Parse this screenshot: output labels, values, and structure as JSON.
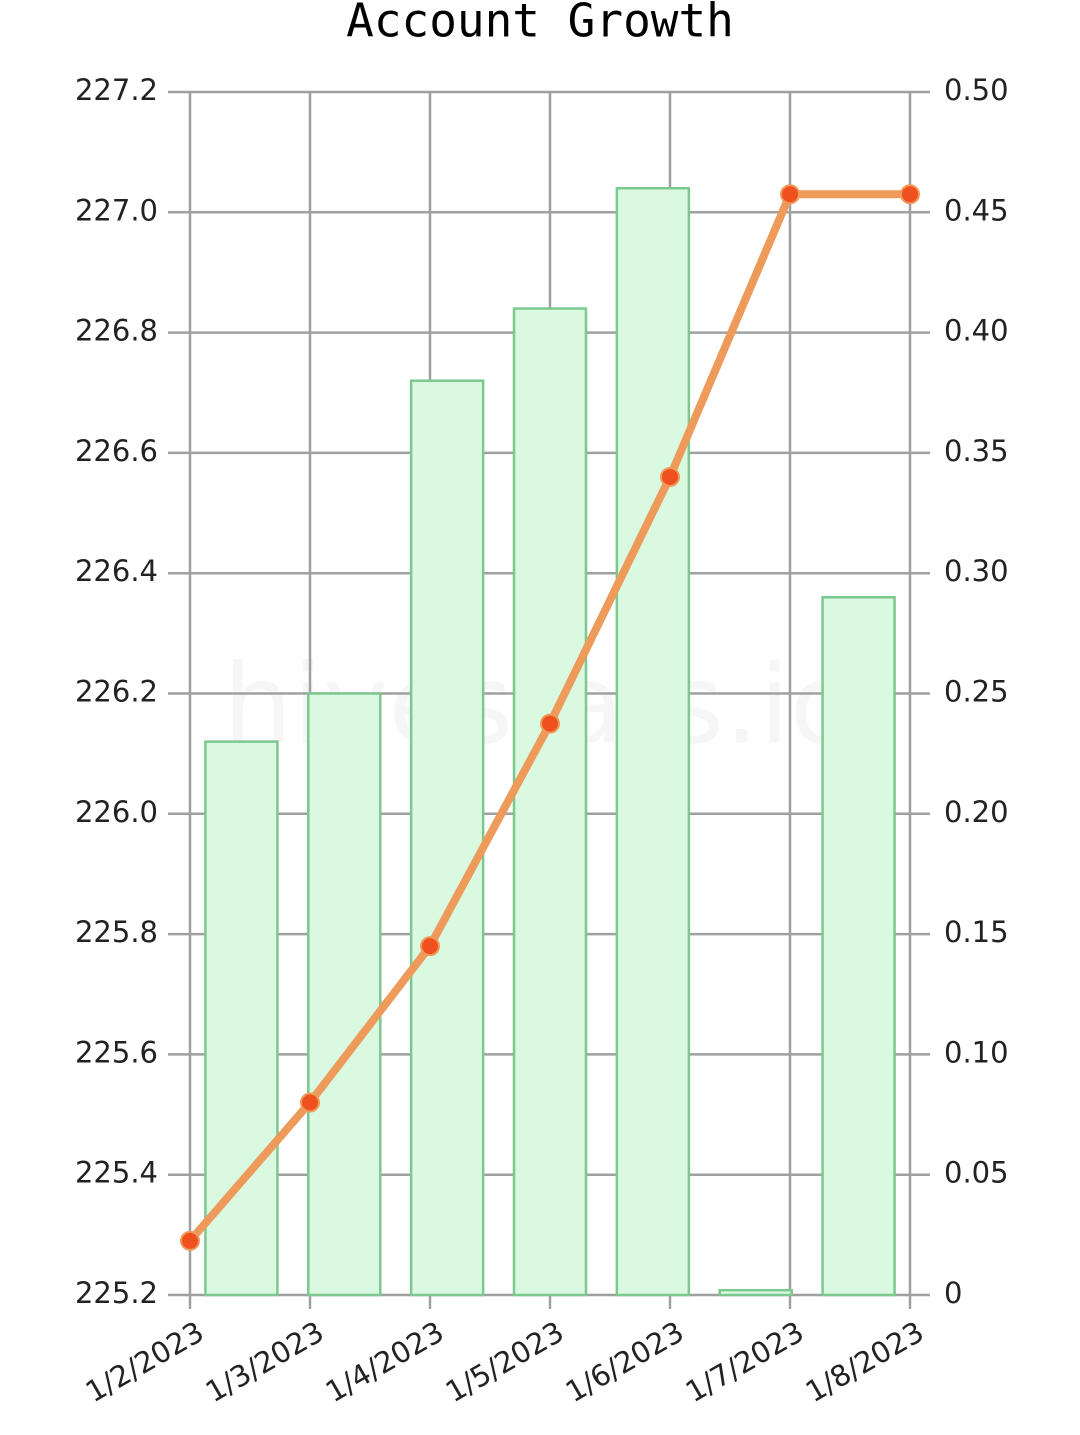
{
  "chart_data": {
    "type": "combo",
    "title": "Account Growth",
    "watermark": "hivestats.io",
    "categories": [
      "1/2/2023",
      "1/3/2023",
      "1/4/2023",
      "1/5/2023",
      "1/6/2023",
      "1/7/2023",
      "1/8/2023"
    ],
    "series": [
      {
        "type": "bar",
        "axis": "y2",
        "color": "#d9f9e1",
        "stroke": "#7cc98f",
        "values": [
          0.23,
          0.25,
          0.38,
          0.41,
          0.46,
          0.002,
          0.29
        ]
      },
      {
        "type": "line",
        "axis": "y",
        "color": "#ee9a5a",
        "marker_color": "#f0501e",
        "values": [
          225.29,
          225.52,
          225.78,
          226.15,
          226.56,
          227.03,
          227.03
        ]
      }
    ],
    "ylim": [
      225.2,
      227.2
    ],
    "yticks": [
      225.2,
      225.4,
      225.6,
      225.8,
      {
        "value": 226,
        "label": "226.0"
      },
      226.2,
      226.4,
      226.6,
      226.8,
      {
        "value": 227,
        "label": "227.0"
      },
      227.2
    ],
    "y2lim": [
      0,
      0.5
    ],
    "y2ticks": [
      0,
      0.05,
      {
        "value": 0.1,
        "label": "0.10"
      },
      0.15,
      {
        "value": 0.2,
        "label": "0.20"
      },
      0.25,
      {
        "value": 0.3,
        "label": "0.30"
      },
      0.35,
      {
        "value": 0.4,
        "label": "0.40"
      },
      0.45,
      {
        "value": 0.5,
        "label": "0.50"
      }
    ],
    "grid": true
  }
}
